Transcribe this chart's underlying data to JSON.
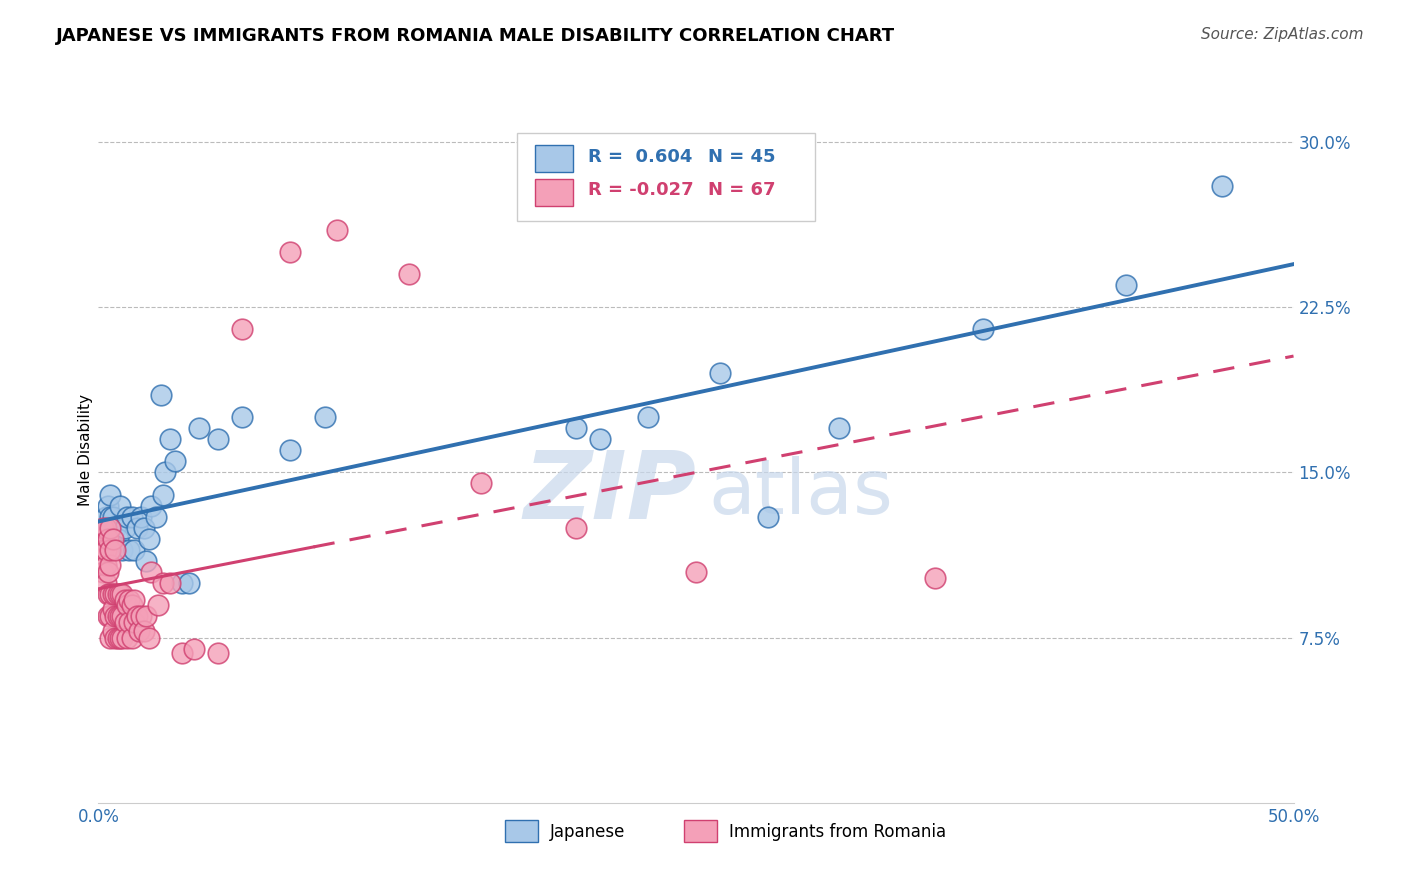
{
  "title": "JAPANESE VS IMMIGRANTS FROM ROMANIA MALE DISABILITY CORRELATION CHART",
  "source": "Source: ZipAtlas.com",
  "ylabel": "Male Disability",
  "legend_label_1": "Japanese",
  "legend_label_2": "Immigrants from Romania",
  "r1": 0.604,
  "n1": 45,
  "r2": -0.027,
  "n2": 67,
  "xlim": [
    0.0,
    0.5
  ],
  "ylim": [
    0.0,
    0.32
  ],
  "xticks": [
    0.0,
    0.5
  ],
  "xtick_labels": [
    "0.0%",
    "50.0%"
  ],
  "yticks": [
    0.075,
    0.15,
    0.225,
    0.3
  ],
  "ytick_labels": [
    "7.5%",
    "15.0%",
    "22.5%",
    "30.0%"
  ],
  "color_blue": "#A8C8E8",
  "color_pink": "#F4A0B8",
  "color_blue_line": "#3070B0",
  "color_pink_line": "#D04070",
  "background_color": "#FFFFFF",
  "watermark_zip": "ZIP",
  "watermark_atlas": "atlas",
  "japanese_x": [
    0.003,
    0.004,
    0.004,
    0.005,
    0.005,
    0.005,
    0.006,
    0.006,
    0.007,
    0.008,
    0.009,
    0.01,
    0.011,
    0.012,
    0.013,
    0.014,
    0.015,
    0.016,
    0.018,
    0.019,
    0.02,
    0.021,
    0.022,
    0.024,
    0.026,
    0.027,
    0.028,
    0.03,
    0.032,
    0.035,
    0.038,
    0.042,
    0.05,
    0.06,
    0.08,
    0.095,
    0.2,
    0.21,
    0.23,
    0.26,
    0.28,
    0.31,
    0.37,
    0.43,
    0.47
  ],
  "japanese_y": [
    0.13,
    0.125,
    0.135,
    0.12,
    0.13,
    0.14,
    0.115,
    0.13,
    0.125,
    0.12,
    0.135,
    0.115,
    0.125,
    0.13,
    0.115,
    0.13,
    0.115,
    0.125,
    0.13,
    0.125,
    0.11,
    0.12,
    0.135,
    0.13,
    0.185,
    0.14,
    0.15,
    0.165,
    0.155,
    0.1,
    0.1,
    0.17,
    0.165,
    0.175,
    0.16,
    0.175,
    0.17,
    0.165,
    0.175,
    0.195,
    0.13,
    0.17,
    0.215,
    0.235,
    0.28
  ],
  "romania_x": [
    0.001,
    0.001,
    0.002,
    0.002,
    0.002,
    0.003,
    0.003,
    0.003,
    0.003,
    0.004,
    0.004,
    0.004,
    0.004,
    0.005,
    0.005,
    0.005,
    0.005,
    0.005,
    0.005,
    0.006,
    0.006,
    0.006,
    0.006,
    0.007,
    0.007,
    0.007,
    0.007,
    0.008,
    0.008,
    0.008,
    0.009,
    0.009,
    0.009,
    0.01,
    0.01,
    0.01,
    0.011,
    0.011,
    0.012,
    0.012,
    0.013,
    0.013,
    0.014,
    0.014,
    0.015,
    0.015,
    0.016,
    0.017,
    0.018,
    0.019,
    0.02,
    0.021,
    0.022,
    0.025,
    0.027,
    0.03,
    0.035,
    0.04,
    0.05,
    0.06,
    0.08,
    0.1,
    0.13,
    0.16,
    0.2,
    0.25,
    0.35
  ],
  "romania_y": [
    0.115,
    0.12,
    0.105,
    0.115,
    0.125,
    0.1,
    0.108,
    0.115,
    0.125,
    0.085,
    0.095,
    0.105,
    0.12,
    0.075,
    0.085,
    0.095,
    0.108,
    0.115,
    0.125,
    0.078,
    0.088,
    0.095,
    0.12,
    0.075,
    0.085,
    0.095,
    0.115,
    0.075,
    0.085,
    0.095,
    0.075,
    0.085,
    0.095,
    0.075,
    0.085,
    0.095,
    0.082,
    0.092,
    0.075,
    0.09,
    0.082,
    0.092,
    0.075,
    0.09,
    0.082,
    0.092,
    0.085,
    0.078,
    0.085,
    0.078,
    0.085,
    0.075,
    0.105,
    0.09,
    0.1,
    0.1,
    0.068,
    0.07,
    0.068,
    0.215,
    0.25,
    0.26,
    0.24,
    0.145,
    0.125,
    0.105,
    0.102
  ],
  "title_fontsize": 13,
  "axis_label_fontsize": 11,
  "tick_fontsize": 12,
  "source_fontsize": 11
}
